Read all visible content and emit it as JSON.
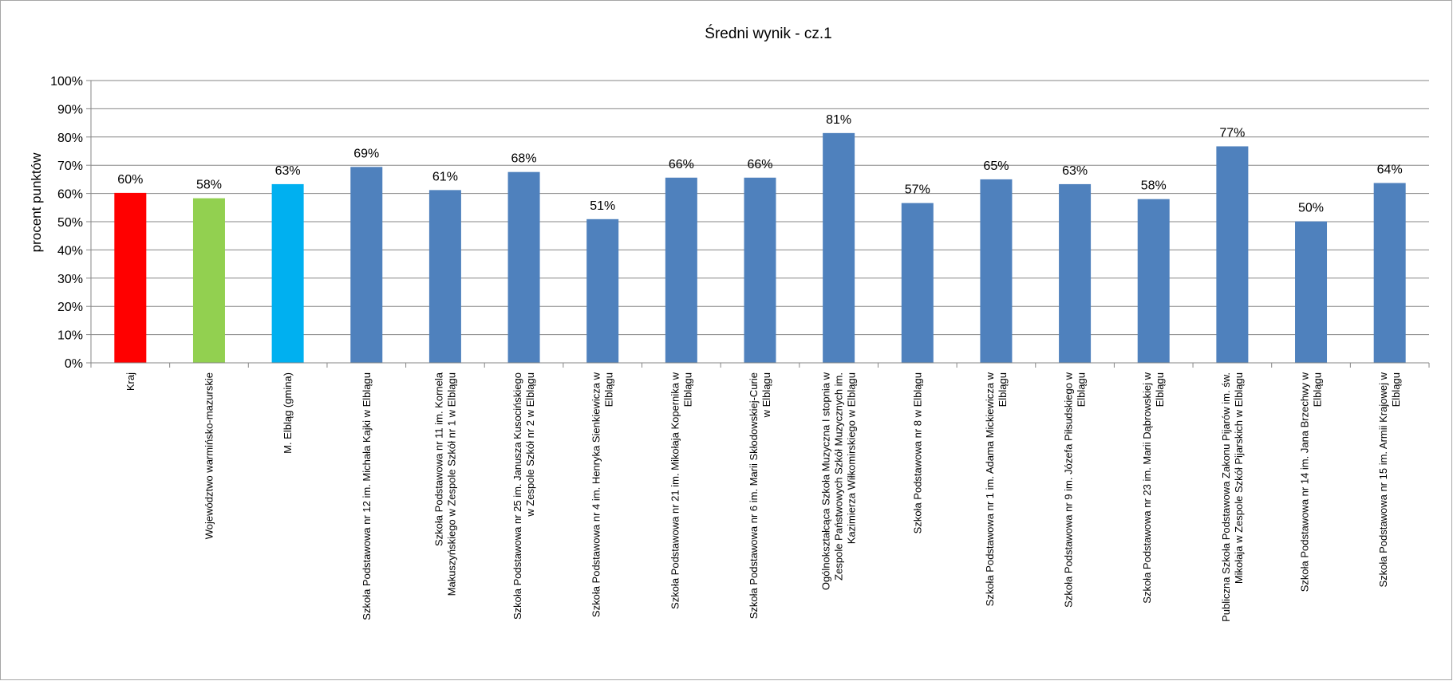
{
  "chart_data": {
    "type": "bar",
    "title": "Średni wynik - cz.1",
    "ylabel": "procent punktów",
    "xlabel": "",
    "ylim": [
      0,
      100
    ],
    "yticks": [
      "0%",
      "10%",
      "20%",
      "30%",
      "40%",
      "50%",
      "60%",
      "70%",
      "80%",
      "90%",
      "100%"
    ],
    "grid": true,
    "legend": "none",
    "categories": [
      [
        "Kraj"
      ],
      [
        "Województwo warmińsko-mazurskie"
      ],
      [
        "M. Elbląg (gmina)"
      ],
      [
        "Szkoła Podstawowa nr 12 im. Michała Kajki w Elblągu"
      ],
      [
        "Szkoła Podstawowa nr 11 im. Kornela",
        "Makuszyńskiego w Zespole Szkół nr 1 w Elblągu"
      ],
      [
        "Szkoła Podstawowa nr 25 im. Janusza Kusocińskiego",
        "w Zespole Szkół nr 2 w Elblągu"
      ],
      [
        "Szkoła Podstawowa nr 4 im. Henryka Sienkiewicza w",
        "Elblągu"
      ],
      [
        "Szkoła Podstawowa nr 21 im. Mikołaja Kopernika w",
        "Elblągu"
      ],
      [
        "Szkoła Podstawowa nr 6 im. Marii Skłodowskiej-Curie",
        "w Elblągu"
      ],
      [
        "Ogólnokształcąca Szkoła Muzyczna I stopnia w",
        "Zespole Państwowych Szkół Muzycznych im.",
        "Kazimierza Wiłkomirskiego w Elblągu"
      ],
      [
        "Szkoła Podstawowa nr 8 w Elblągu"
      ],
      [
        "Szkoła Podstawowa nr 1 im. Adama Mickiewicza w",
        "Elblągu"
      ],
      [
        "Szkoła Podstawowa nr 9 im. Józefa Piłsudskiego w",
        "Elblągu"
      ],
      [
        "Szkoła Podstawowa nr 23 im. Marii Dąbrowskiej w",
        "Elblągu"
      ],
      [
        "Publiczna Szkoła Podstawowa Zakonu Pijarów im. św.",
        "Mikołaja w Zespole Szkół Pijarskich w Elblągu"
      ],
      [
        "Szkoła Podstawowa nr 14 im. Jana Brzechwy w",
        "Elblągu"
      ],
      [
        "Szkoła Podstawowa nr 15 im. Armii Krajowej w",
        "Elblągu"
      ]
    ],
    "values": [
      60.2,
      58.3,
      63.3,
      69.4,
      61.2,
      67.6,
      50.9,
      65.6,
      65.6,
      81.4,
      56.6,
      65.0,
      63.3,
      58.0,
      76.7,
      50.1,
      63.7
    ],
    "data_labels": [
      "60%",
      "58%",
      "63%",
      "69%",
      "61%",
      "68%",
      "51%",
      "66%",
      "66%",
      "81%",
      "57%",
      "65%",
      "63%",
      "58%",
      "77%",
      "50%",
      "64%"
    ],
    "colors": [
      "#ff0000",
      "#92d050",
      "#00b0f0",
      "#4f81bd",
      "#4f81bd",
      "#4f81bd",
      "#4f81bd",
      "#4f81bd",
      "#4f81bd",
      "#4f81bd",
      "#4f81bd",
      "#4f81bd",
      "#4f81bd",
      "#4f81bd",
      "#4f81bd",
      "#4f81bd",
      "#4f81bd"
    ],
    "grid_color": "#868686",
    "axis_color": "#868686"
  }
}
